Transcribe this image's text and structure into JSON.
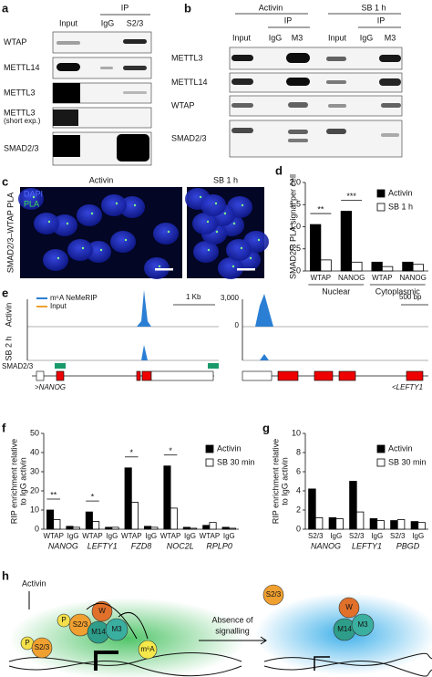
{
  "panel_labels": [
    "a",
    "b",
    "c",
    "d",
    "e",
    "f",
    "g",
    "h"
  ],
  "panel_a": {
    "ip": "IP",
    "lanes": [
      "Input",
      "IgG",
      "S2/3"
    ],
    "rows": [
      "WTAP",
      "METTL14",
      "METTL3",
      "METTL3",
      "SMAD2/3"
    ],
    "row_note": "(short exp.)"
  },
  "panel_b": {
    "conditions": [
      "Activin",
      "SB 1 h"
    ],
    "ip": "IP",
    "lanes": [
      "Input",
      "IgG",
      "M3",
      "Input",
      "IgG",
      "M3"
    ],
    "rows": [
      "METTL3",
      "METTL14",
      "WTAP",
      "SMAD2/3"
    ]
  },
  "panel_c": {
    "conditions": [
      "Activin",
      "SB 1 h"
    ],
    "side_label": "SMAD2/3–WTAP PLA",
    "channels": [
      "DAPI",
      "PLA"
    ]
  },
  "panel_d": {
    "type": "bar",
    "ylabel": [
      "SMAD2/3 PLA signal per cell"
    ],
    "categories": [
      "WTAP",
      "NANOG",
      "WTAP",
      "NANOG"
    ],
    "groups": [
      "Nuclear",
      "Cytoplasmic"
    ],
    "series": [
      {
        "name": "Activin",
        "color": "#000000",
        "values": [
          1.05,
          1.35,
          0.2,
          0.2
        ]
      },
      {
        "name": "SB 1 h",
        "color": "#ffffff",
        "values": [
          0.25,
          0.2,
          0.1,
          0.15
        ]
      }
    ],
    "significance": [
      "**",
      "***"
    ],
    "ylim": [
      0,
      2
    ],
    "yticks": [
      0,
      0.5,
      {
        "value": 1,
        "label": "1.0"
      },
      1.5,
      {
        "value": 2,
        "label": "2.0"
      }
    ]
  },
  "panel_e": {
    "legend": [
      "m⁶A NeMeRIP",
      "Input"
    ],
    "conditions": [
      "Activin",
      "SB 2 h"
    ],
    "scale_bars": [
      "1 Kb",
      "500 bp"
    ],
    "track_max": "3,000",
    "track_zero": "0",
    "binding_track": "SMAD2/3",
    "genes": [
      ">NANOG",
      "<LEFTY1"
    ]
  },
  "panel_f": {
    "type": "bar",
    "ylabel": [
      "RIP enrichment relative",
      "to IgG activin"
    ],
    "categories": [
      "WTAP",
      "IgG",
      "WTAP",
      "IgG",
      "WTAP",
      "IgG",
      "WTAP",
      "IgG",
      "WTAP",
      "IgG"
    ],
    "groups": [
      "NANOG",
      "LEFTY1",
      "FZD8",
      "NOC2L",
      "RPLP0"
    ],
    "series": [
      {
        "name": "Activin",
        "color": "#000000",
        "values": [
          10,
          1.5,
          9,
          1,
          32,
          1.5,
          33,
          1,
          2,
          1
        ]
      },
      {
        "name": "SB 30 min",
        "color": "#ffffff",
        "values": [
          5,
          1,
          4,
          1,
          14,
          1,
          11,
          0.5,
          3.5,
          0.5
        ]
      }
    ],
    "significance": [
      "**",
      null,
      "*",
      null,
      "*",
      null,
      "*"
    ],
    "ylim": [
      0,
      50
    ],
    "yticks": [
      0,
      10,
      20,
      30,
      40,
      50
    ]
  },
  "panel_g": {
    "type": "bar",
    "ylabel": [
      "RIP enrichment relative",
      "to IgG activin"
    ],
    "categories": [
      "S2/3",
      "IgG",
      "S2/3",
      "IgG",
      "S2/3",
      "IgG"
    ],
    "groups": [
      "NANOG",
      "LEFTY1",
      "PBGD"
    ],
    "series": [
      {
        "name": "Activin",
        "color": "#000000",
        "values": [
          4.2,
          1.2,
          5,
          1.1,
          0.9,
          0.8
        ]
      },
      {
        "name": "SB 30 min",
        "color": "#ffffff",
        "values": [
          1.2,
          1.1,
          1.8,
          0.9,
          1,
          0.7
        ]
      }
    ],
    "significance": [],
    "ylim": [
      0,
      10
    ],
    "yticks": [
      0,
      2,
      4,
      6,
      8,
      10
    ]
  },
  "panel_h": {
    "signal": "Activin",
    "phospho": "P",
    "smad": "S2/3",
    "wtap": "W",
    "mettl14": "M14",
    "mettl3": "M3",
    "mark": "m⁶A",
    "transition": [
      "Absence of",
      "signalling"
    ]
  }
}
